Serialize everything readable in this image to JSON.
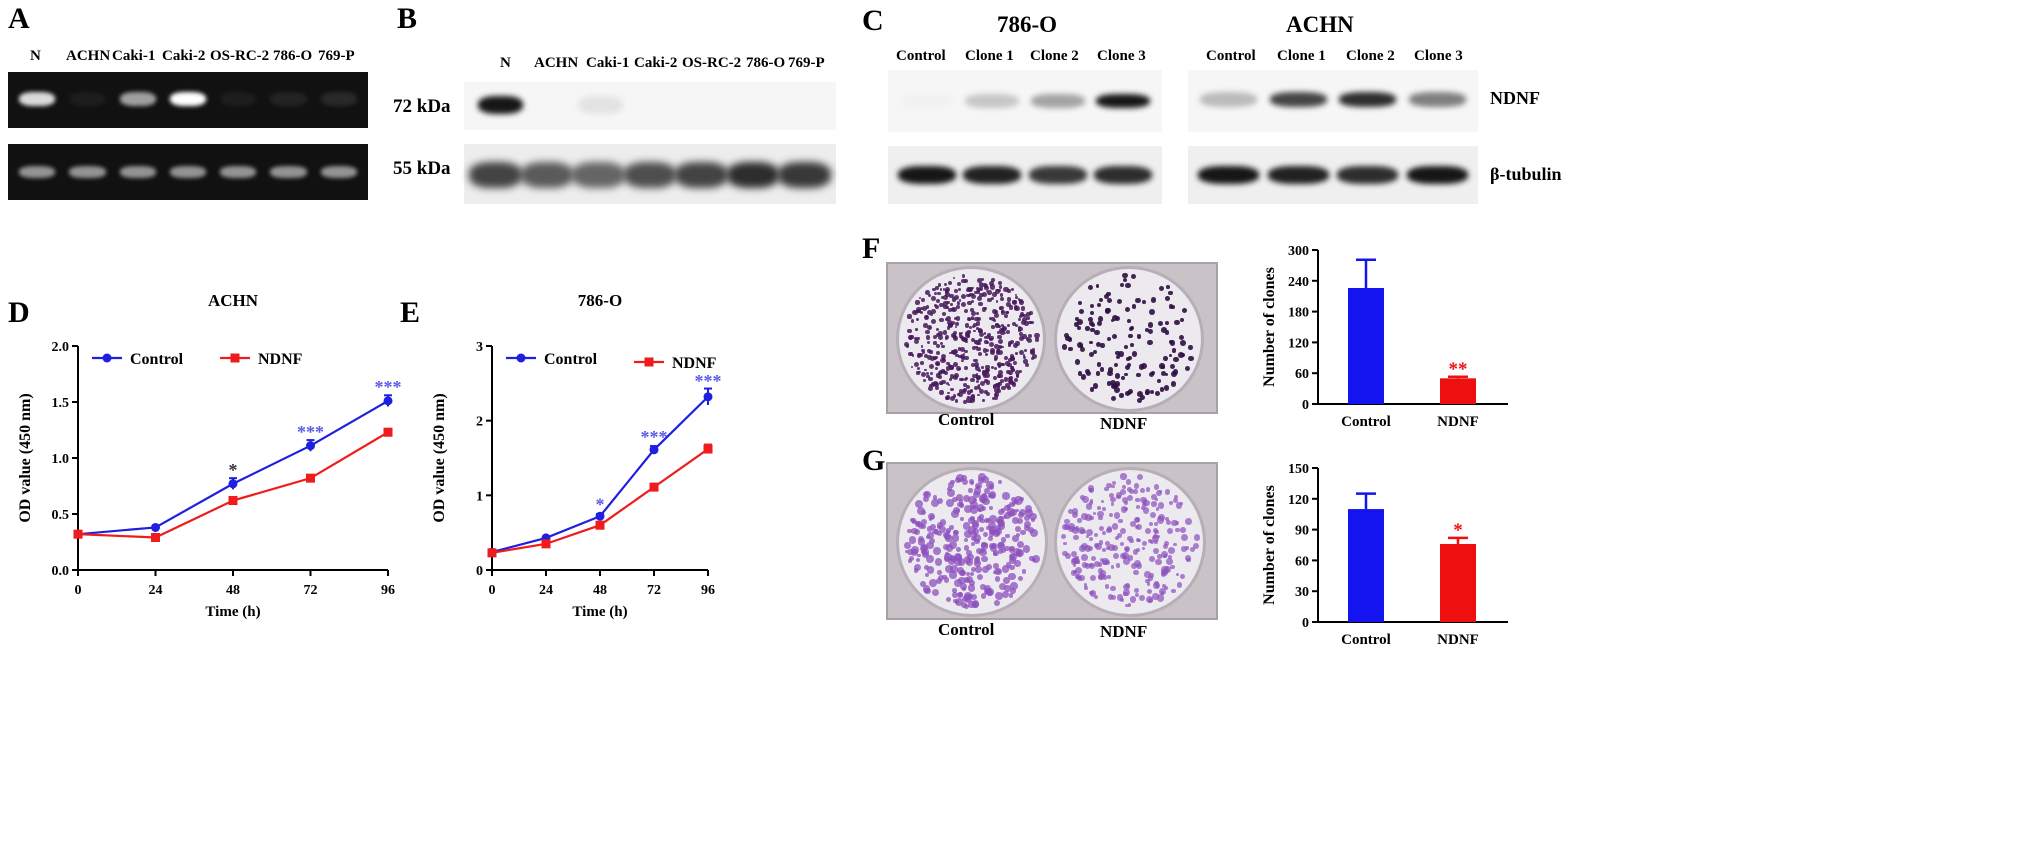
{
  "panels": {
    "A": {
      "label": "A",
      "lanes": [
        "N",
        "ACHN",
        "Caki-1",
        "Caki-2",
        "OS-RC-2",
        "786-O",
        "769-P"
      ],
      "top_band_intensity": [
        0.85,
        0.05,
        0.6,
        1.0,
        0.05,
        0.08,
        0.1
      ],
      "bottom_band_intensity": [
        0.55,
        0.55,
        0.55,
        0.55,
        0.55,
        0.55,
        0.55
      ]
    },
    "B": {
      "label": "B",
      "lanes": [
        "N",
        "ACHN",
        "Caki-1",
        "Caki-2",
        "OS-RC-2",
        "786-O",
        "769-P"
      ],
      "marker_top": "72 kDa",
      "marker_bottom": "55 kDa",
      "top_band_intensity": [
        0.95,
        0,
        0.08,
        0,
        0,
        0,
        0
      ],
      "bottom_band_intensity": [
        0.75,
        0.65,
        0.6,
        0.7,
        0.75,
        0.85,
        0.8
      ]
    },
    "C": {
      "label": "C",
      "group_left": "786-O",
      "group_right": "ACHN",
      "lanes": [
        "Control",
        "Clone 1",
        "Clone 2",
        "Clone 3"
      ],
      "row_top": "NDNF",
      "row_bottom": "β-tubulin",
      "left_top_intensity": [
        0.02,
        0.2,
        0.35,
        0.95
      ],
      "right_top_intensity": [
        0.25,
        0.75,
        0.85,
        0.5
      ],
      "left_bottom_intensity": [
        0.95,
        0.9,
        0.8,
        0.85
      ],
      "right_bottom_intensity": [
        0.95,
        0.9,
        0.85,
        0.95
      ]
    },
    "D": {
      "label": "D"
    },
    "E": {
      "label": "E"
    },
    "F": {
      "label": "F",
      "plate_left": "Control",
      "plate_right": "NDNF"
    },
    "G": {
      "label": "G",
      "plate_left": "Control",
      "plate_right": "NDNF"
    }
  },
  "chart_data": [
    {
      "id": "D",
      "type": "line",
      "title": "ACHN",
      "xlabel": "Time (h)",
      "ylabel": "OD value (450 nm)",
      "x": [
        0,
        24,
        48,
        72,
        96
      ],
      "xlim": [
        0,
        96
      ],
      "ylim": [
        0,
        2.0
      ],
      "xticks": [
        "0",
        "24",
        "48",
        "72",
        "96"
      ],
      "yticks": [
        "0.0",
        "0.5",
        "1.0",
        "1.5",
        "2.0"
      ],
      "ytick_values": [
        0,
        0.5,
        1.0,
        1.5,
        2.0
      ],
      "legend_position": "top-left",
      "series": [
        {
          "name": "Control",
          "color": "#1f1fe0",
          "marker": "circle",
          "values": [
            0.32,
            0.38,
            0.77,
            1.11,
            1.51
          ],
          "errors": [
            0.01,
            0.01,
            0.05,
            0.05,
            0.05
          ]
        },
        {
          "name": "NDNF",
          "color": "#ee1c1c",
          "marker": "square",
          "values": [
            0.32,
            0.29,
            0.62,
            0.82,
            1.23
          ],
          "errors": [
            0.01,
            0.01,
            0.03,
            0.02,
            0.03
          ]
        }
      ],
      "annotations": [
        {
          "x": 48,
          "y": 0.84,
          "text": "*",
          "color": "#333333"
        },
        {
          "x": 72,
          "y": 1.18,
          "text": "***",
          "color": "#5a5ae8"
        },
        {
          "x": 96,
          "y": 1.58,
          "text": "***",
          "color": "#5a5ae8"
        }
      ]
    },
    {
      "id": "E",
      "type": "line",
      "title": "786-O",
      "xlabel": "Time (h)",
      "ylabel": "OD value (450 nm)",
      "x": [
        0,
        24,
        48,
        72,
        96
      ],
      "xlim": [
        0,
        96
      ],
      "ylim": [
        0,
        3
      ],
      "xticks": [
        "0",
        "24",
        "48",
        "72",
        "96"
      ],
      "yticks": [
        "0",
        "1",
        "2",
        "3"
      ],
      "ytick_values": [
        0,
        1,
        2,
        3
      ],
      "legend_position": "top-left",
      "series": [
        {
          "name": "Control",
          "color": "#1f1fe0",
          "marker": "circle",
          "values": [
            0.24,
            0.43,
            0.72,
            1.61,
            2.32
          ],
          "errors": [
            0.01,
            0.01,
            0.03,
            0.05,
            0.11
          ]
        },
        {
          "name": "NDNF",
          "color": "#ee1c1c",
          "marker": "square",
          "values": [
            0.23,
            0.35,
            0.6,
            1.11,
            1.62
          ],
          "errors": [
            0.01,
            0.01,
            0.02,
            0.03,
            0.06
          ]
        }
      ],
      "annotations": [
        {
          "x": 48,
          "y": 0.8,
          "text": "*",
          "color": "#5a5ae8"
        },
        {
          "x": 72,
          "y": 1.7,
          "text": "***",
          "color": "#5a5ae8"
        },
        {
          "x": 96,
          "y": 2.45,
          "text": "***",
          "color": "#5a5ae8"
        }
      ]
    },
    {
      "id": "F",
      "type": "bar",
      "categories": [
        "Control",
        "NDNF"
      ],
      "values": [
        226,
        50
      ],
      "errors": [
        55,
        3
      ],
      "colors": [
        "#1414f0",
        "#ee1010"
      ],
      "ylabel": "Number of clones",
      "ylim": [
        0,
        300
      ],
      "yticks": [
        "0",
        "60",
        "120",
        "180",
        "240",
        "300"
      ],
      "ytick_values": [
        0,
        60,
        120,
        180,
        240,
        300
      ],
      "annotations": [
        {
          "category": "NDNF",
          "text": "**",
          "color": "#ee1010"
        }
      ]
    },
    {
      "id": "G",
      "type": "bar",
      "categories": [
        "Control",
        "NDNF"
      ],
      "values": [
        110,
        76
      ],
      "errors": [
        15,
        6
      ],
      "colors": [
        "#1414f0",
        "#ee1010"
      ],
      "ylabel": "Number of clones",
      "ylim": [
        0,
        150
      ],
      "yticks": [
        "0",
        "30",
        "60",
        "90",
        "120",
        "150"
      ],
      "ytick_values": [
        0,
        30,
        60,
        90,
        120,
        150
      ],
      "annotations": [
        {
          "category": "NDNF",
          "text": "*",
          "color": "#ee1010"
        }
      ]
    }
  ]
}
